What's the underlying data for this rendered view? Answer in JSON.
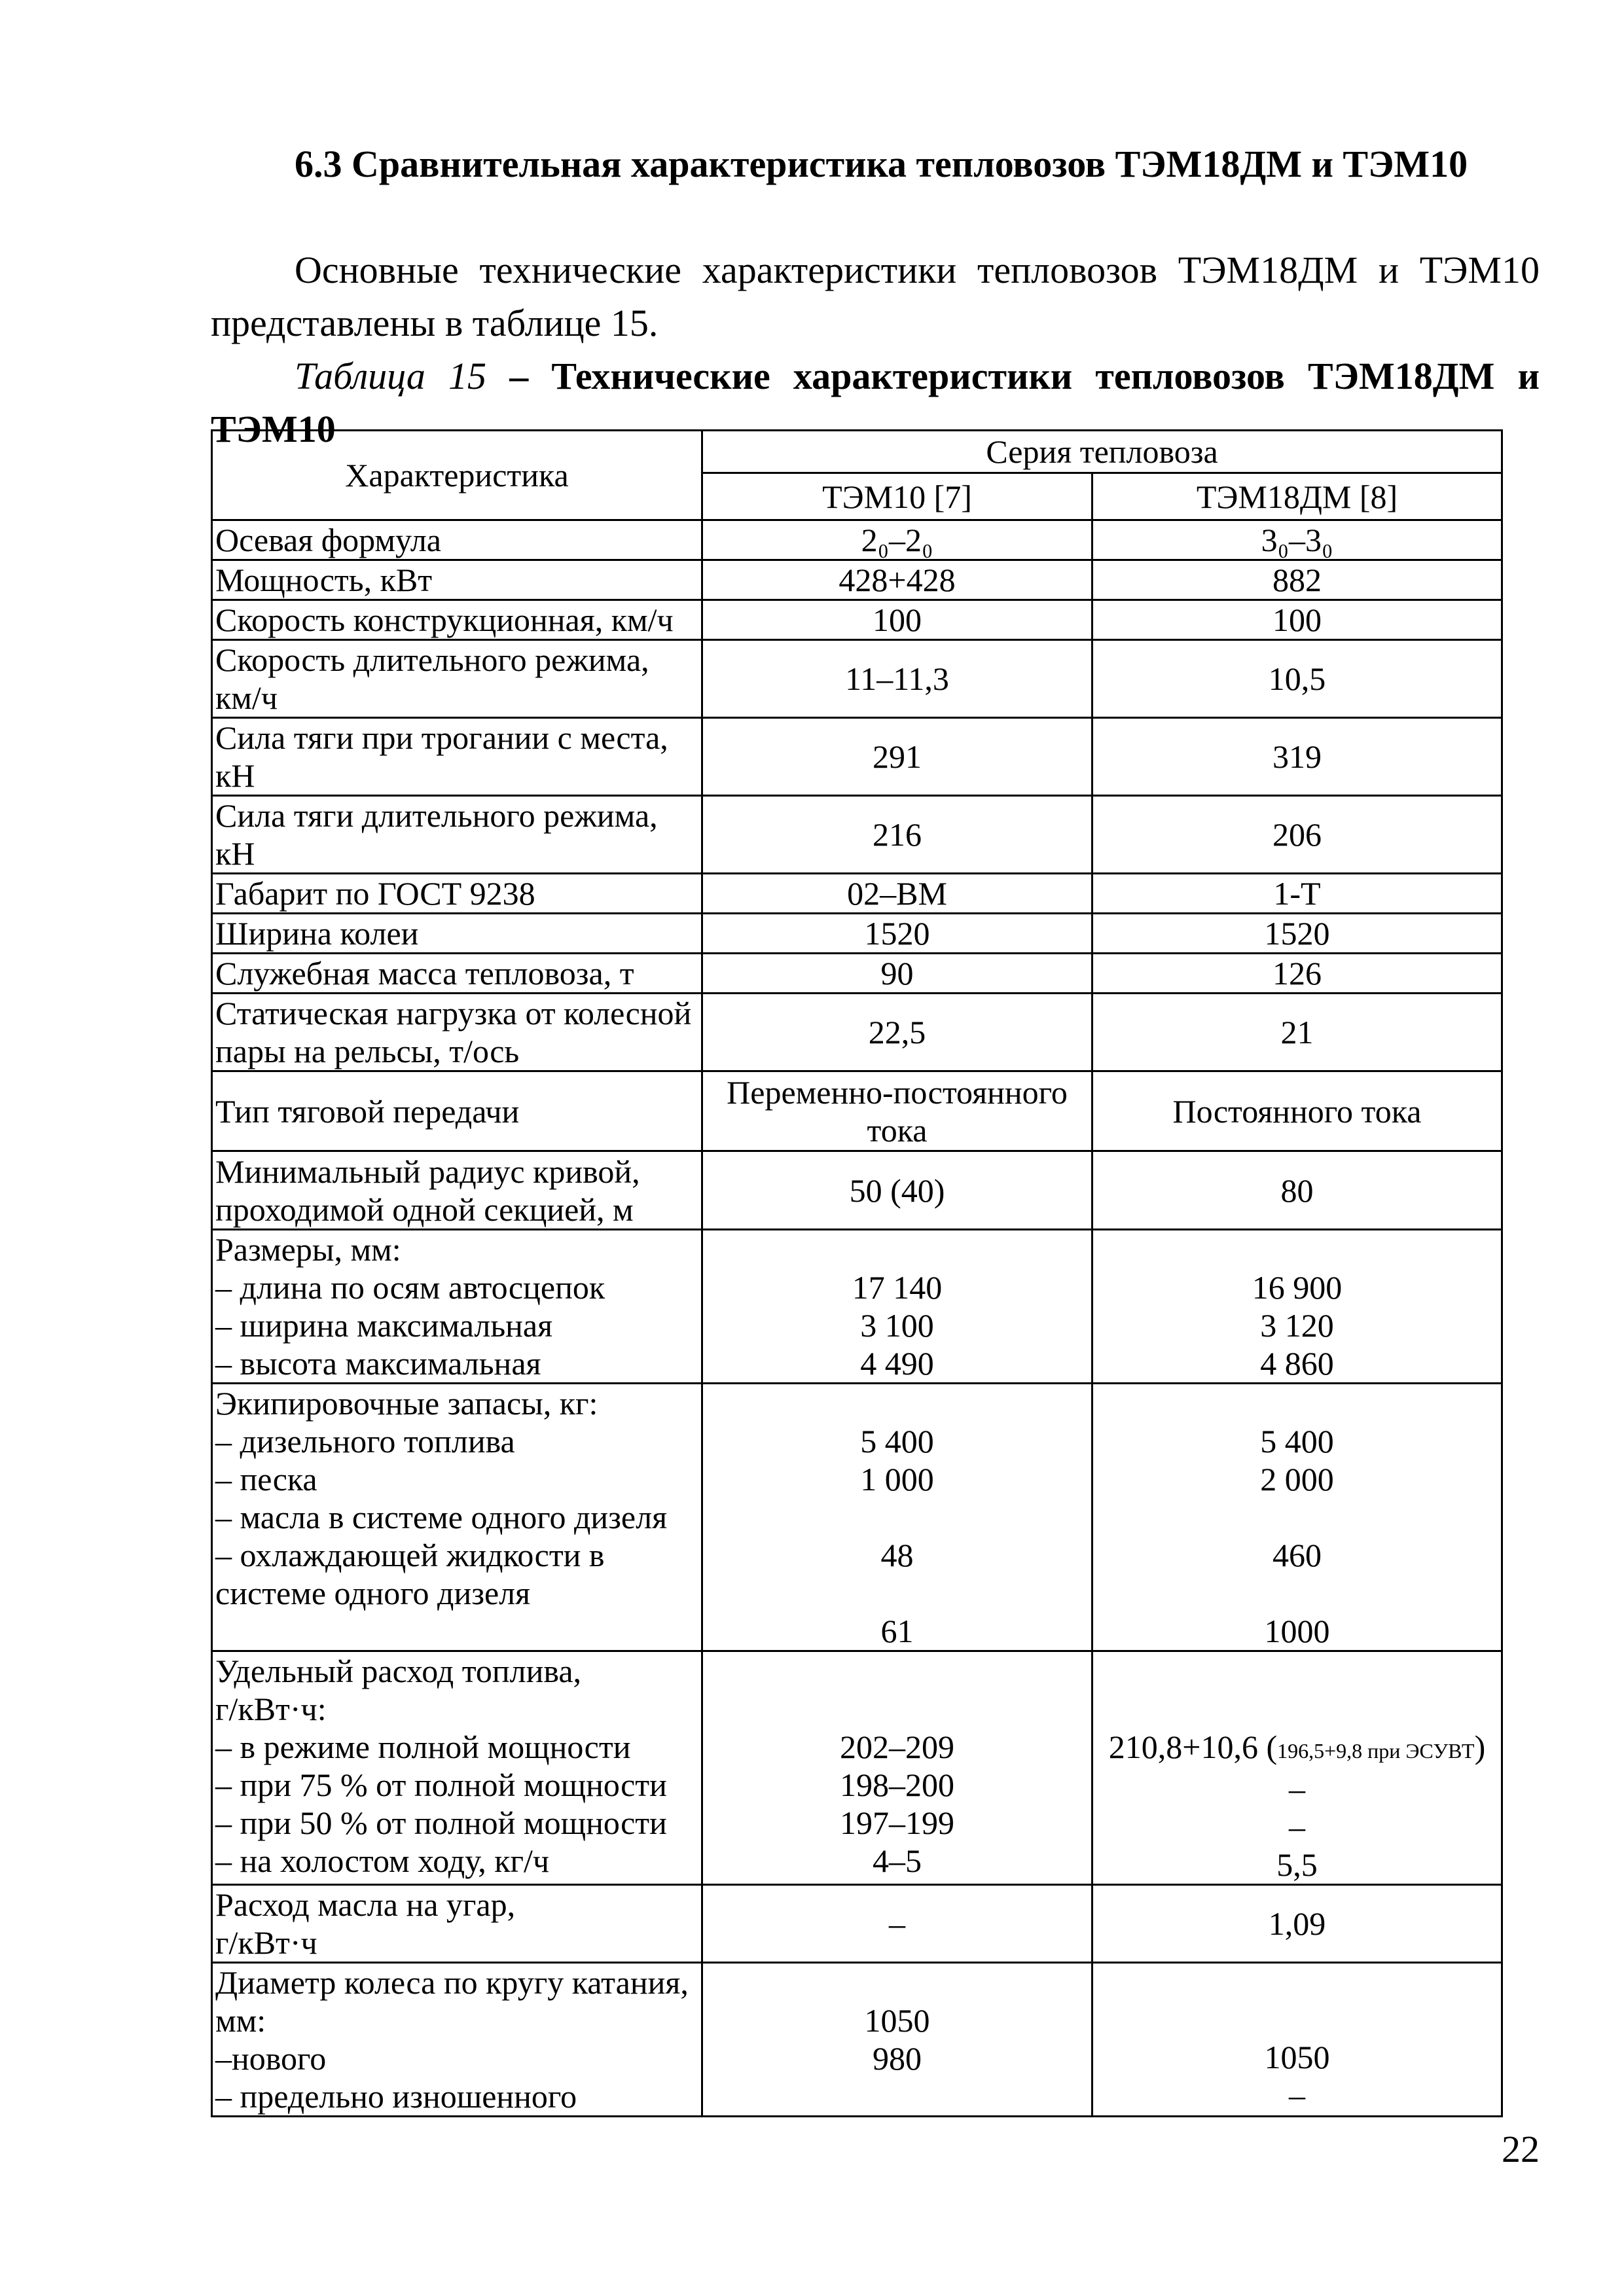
{
  "section_heading": "6.3 Сравнительная характеристика тепловозов ТЭМ18ДМ и ТЭМ10",
  "intro_text": "Основные технические характеристики тепловозов ТЭМ18ДМ и ТЭМ10 представлены в таблице 15.",
  "caption": {
    "label": "Таблица 15",
    "dash": " – ",
    "title": "Технические характеристики тепловозов ТЭМ18ДМ и ТЭМ10"
  },
  "table": {
    "header": {
      "characteristic": "Характеристика",
      "series": "Серия тепловоза",
      "col1": "ТЭМ10 [7]",
      "col2": "ТЭМ18ДМ [8]"
    },
    "rows": [
      {
        "name": "Осевая формула",
        "v1": "2₀–2₀",
        "v2": "3₀–3₀"
      },
      {
        "name": "Мощность, кВт",
        "v1": "428+428",
        "v2": "882"
      },
      {
        "name": "Скорость конструкционная, км/ч",
        "v1": "100",
        "v2": "100"
      },
      {
        "name": "Скорость длительного режима,\nкм/ч",
        "v1": "11–11,3",
        "v2": "10,5"
      },
      {
        "name": "Сила тяги при трогании с места,\nкН",
        "v1": "291",
        "v2": "319"
      },
      {
        "name": "Сила тяги длительного режима,\nкН",
        "v1": "216",
        "v2": "206"
      },
      {
        "name": "Габарит по ГОСТ 9238",
        "v1": "02–ВМ",
        "v2": "1-Т"
      },
      {
        "name": "Ширина колеи",
        "v1": "1520",
        "v2": "1520"
      },
      {
        "name": "Служебная масса тепловоза, т",
        "v1": "90",
        "v2": "126"
      },
      {
        "name": "Статическая нагрузка от колесной\nпары на рельсы, т/ось",
        "v1": "22,5",
        "v2": "21"
      },
      {
        "name": "Тип тяговой передачи",
        "v1": "Переменно-постоянного\nтока",
        "v2": "Постоянного тока"
      },
      {
        "name": "Минимальный радиус кривой,\nпроходимой одной секцией, м",
        "v1": "50 (40)",
        "v2": "80"
      },
      {
        "name": "Размеры, мм:\n– длина по осям автосцепок\n– ширина максимальная\n– высота максимальная",
        "v1": "\n17 140\n3 100\n4 490",
        "v2": "\n16 900\n3 120\n4 860"
      },
      {
        "name": "Экипировочные запасы, кг:\n– дизельного топлива\n– песка\n– масла в системе одного дизеля\n– охлаждающей жидкости в\nсистеме одного дизеля",
        "v1": "\n5 400\n1 000\n\n48\n\n61",
        "v2": "\n5 400\n2 000\n\n460\n\n1000"
      },
      {
        "name": "Удельный расход топлива,\nг/кВт·ч:\n– в режиме полной мощности\n– при 75 % от полной мощности\n– при 50 % от полной мощности\n– на холостом ходу, кг/ч",
        "v1": "\n\n202–209\n198–200\n197–199\n4–5",
        "v2_main": "210,8+10,6 (",
        "v2_note": "196,5+9,8 при ЭСУВТ",
        "v2_close": ")",
        "v2_rest": "–\n–\n5,5"
      },
      {
        "name": "Расход масла на угар,\nг/кВт·ч",
        "v1": "–",
        "v2": "1,09"
      },
      {
        "name": "Диаметр колеса по кругу катания,\nмм:\n–нового\n– предельно изношенного",
        "v1": "1050\n980",
        "v2": "1050\n–"
      }
    ]
  },
  "page_number": "22"
}
